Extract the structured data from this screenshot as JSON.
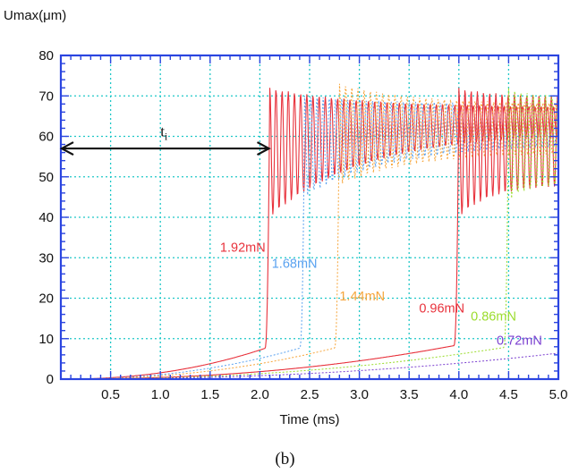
{
  "chart_data": {
    "type": "line",
    "ylabel": "Umax(μm)",
    "xlabel": "Time (ms)",
    "xlim": [
      0,
      5.0
    ],
    "ylim": [
      0,
      80
    ],
    "x_ticks": [
      0.5,
      1.0,
      1.5,
      2.0,
      2.5,
      3.0,
      3.5,
      4.0,
      4.5,
      5.0
    ],
    "x_tick_labels": [
      "0.5",
      "1.0",
      "1.5",
      "2.0",
      "2.5",
      "3.0",
      "3.5",
      "4.0",
      "4.5",
      "5.0"
    ],
    "y_ticks": [
      0,
      10,
      20,
      30,
      40,
      50,
      60,
      70,
      80
    ],
    "y_tick_labels": [
      "0",
      "10",
      "20",
      "30",
      "40",
      "50",
      "60",
      "70",
      "80"
    ],
    "grid": true,
    "frame_color": "#2b45e0",
    "grid_color": "#1fc7c7",
    "background": "#ffffff",
    "series": [
      {
        "label": "1.92mN",
        "color": "#e8323c",
        "style": "solid",
        "jump_time": 2.1,
        "pre_jump_value": 8,
        "oscillation_range_start": [
          40,
          72
        ],
        "oscillation_range_end": [
          61,
          67
        ],
        "label_at": [
          1.6,
          31.5
        ]
      },
      {
        "label": "1.68mN",
        "color": "#5aa2f0",
        "style": "dotted",
        "jump_time": 2.45,
        "pre_jump_value": 8,
        "oscillation_range_start": [
          45,
          70
        ],
        "oscillation_range_end": [
          58,
          68
        ],
        "label_at": [
          2.12,
          27.5
        ]
      },
      {
        "label": "1.44mN",
        "color": "#f6a53a",
        "style": "dotted",
        "jump_time": 2.8,
        "pre_jump_value": 8,
        "oscillation_range_start": [
          48,
          73
        ],
        "oscillation_range_end": [
          56,
          68
        ],
        "label_at": [
          2.8,
          19.5
        ]
      },
      {
        "label": "0.96mN",
        "color": "#e8323c",
        "style": "solid",
        "jump_time": 4.0,
        "pre_jump_value": 8.5,
        "oscillation_range_start": [
          40,
          72
        ],
        "oscillation_range_end": [
          48,
          70
        ],
        "label_at": [
          3.6,
          16.5
        ]
      },
      {
        "label": "0.86mN",
        "color": "#9bdc2c",
        "style": "dotted",
        "jump_time": 4.5,
        "pre_jump_value": 8,
        "oscillation_range_start": [
          44,
          72
        ],
        "oscillation_range_end": [
          48,
          70
        ],
        "label_at": [
          4.12,
          14.5
        ]
      },
      {
        "label": "0.72mN",
        "color": "#7b3fd0",
        "style": "dotted",
        "jump_time": 5.2,
        "pre_jump_value": 7,
        "label_at": [
          4.38,
          8.5
        ]
      }
    ],
    "annotations": [
      {
        "text": "t",
        "subscript": "i",
        "arrow_from": [
          0,
          57
        ],
        "arrow_to": [
          2.1,
          57
        ],
        "text_at": [
          1.0,
          60
        ]
      }
    ]
  },
  "caption": "(b)"
}
